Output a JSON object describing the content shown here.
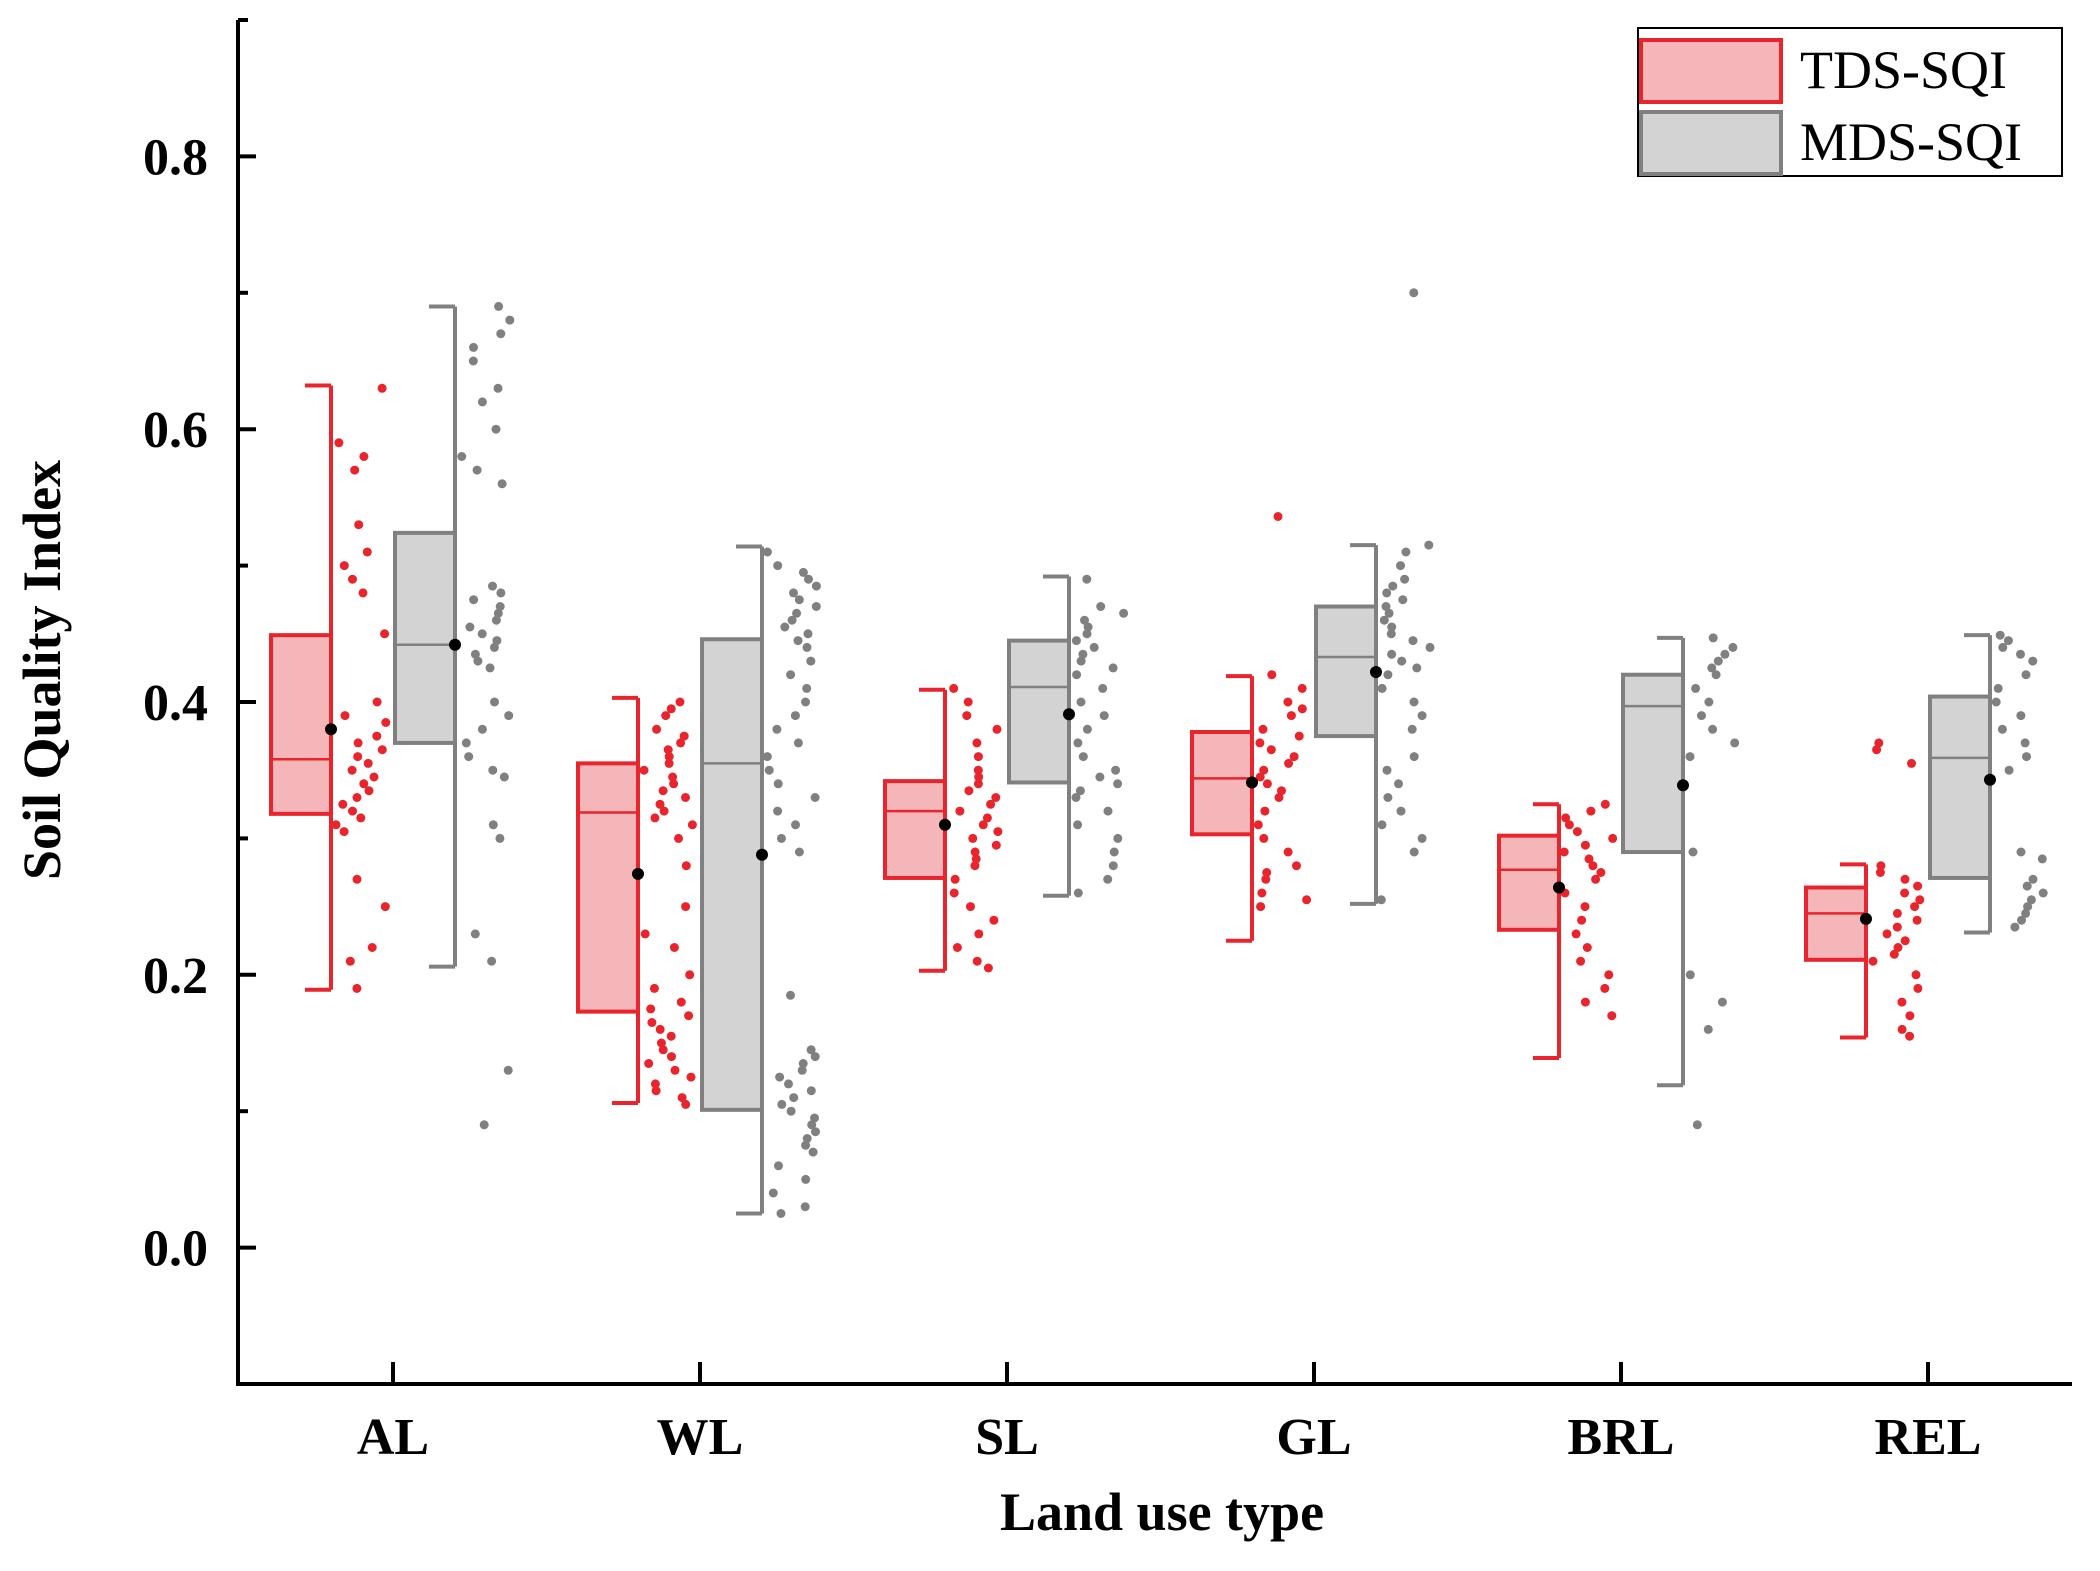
{
  "chart_data": {
    "type": "box",
    "title": "",
    "xlabel": "Land use type",
    "ylabel": "Soil Quality Index",
    "ylim": [
      -0.1,
      0.9
    ],
    "yticks": [
      "0.0",
      "0.2",
      "0.4",
      "0.6",
      "0.8"
    ],
    "categories": [
      "AL",
      "WL",
      "SL",
      "GL",
      "BRL",
      "REL"
    ],
    "legend": {
      "position": "top-right",
      "entries": [
        "TDS-SQI",
        "MDS-SQI"
      ]
    },
    "series": [
      {
        "name": "TDS-SQI",
        "color": "#e8242c",
        "fill": "#f4b6b9",
        "boxes": [
          {
            "q1": 0.318,
            "median": 0.358,
            "q3": 0.449,
            "whisker_low": 0.189,
            "whisker_high": 0.632,
            "mean": 0.38,
            "points": [
              0.63,
              0.59,
              0.58,
              0.57,
              0.53,
              0.51,
              0.5,
              0.49,
              0.48,
              0.45,
              0.4,
              0.39,
              0.385,
              0.375,
              0.37,
              0.365,
              0.36,
              0.355,
              0.35,
              0.345,
              0.34,
              0.335,
              0.33,
              0.325,
              0.32,
              0.315,
              0.31,
              0.305,
              0.27,
              0.25,
              0.22,
              0.21,
              0.19
            ]
          },
          {
            "q1": 0.173,
            "median": 0.319,
            "q3": 0.355,
            "whisker_low": 0.106,
            "whisker_high": 0.403,
            "mean": 0.274,
            "points": [
              0.4,
              0.395,
              0.39,
              0.38,
              0.375,
              0.37,
              0.365,
              0.36,
              0.355,
              0.35,
              0.345,
              0.34,
              0.335,
              0.33,
              0.325,
              0.32,
              0.315,
              0.31,
              0.3,
              0.28,
              0.25,
              0.23,
              0.22,
              0.2,
              0.19,
              0.18,
              0.175,
              0.17,
              0.165,
              0.16,
              0.155,
              0.15,
              0.145,
              0.14,
              0.135,
              0.13,
              0.125,
              0.12,
              0.115,
              0.11,
              0.105
            ]
          },
          {
            "q1": 0.271,
            "median": 0.32,
            "q3": 0.342,
            "whisker_low": 0.203,
            "whisker_high": 0.409,
            "mean": 0.31,
            "points": [
              0.41,
              0.4,
              0.39,
              0.38,
              0.37,
              0.36,
              0.35,
              0.345,
              0.34,
              0.335,
              0.33,
              0.325,
              0.32,
              0.315,
              0.31,
              0.305,
              0.3,
              0.295,
              0.29,
              0.285,
              0.28,
              0.27,
              0.26,
              0.25,
              0.24,
              0.23,
              0.22,
              0.21,
              0.205
            ]
          },
          {
            "q1": 0.303,
            "median": 0.344,
            "q3": 0.378,
            "whisker_low": 0.225,
            "whisker_high": 0.419,
            "mean": 0.341,
            "points": [
              0.536,
              0.42,
              0.41,
              0.4,
              0.395,
              0.39,
              0.38,
              0.375,
              0.37,
              0.365,
              0.36,
              0.355,
              0.35,
              0.345,
              0.34,
              0.335,
              0.33,
              0.32,
              0.31,
              0.3,
              0.29,
              0.28,
              0.275,
              0.27,
              0.26,
              0.255,
              0.25
            ]
          },
          {
            "q1": 0.233,
            "median": 0.277,
            "q3": 0.302,
            "whisker_low": 0.139,
            "whisker_high": 0.325,
            "mean": 0.264,
            "points": [
              0.325,
              0.32,
              0.315,
              0.31,
              0.305,
              0.3,
              0.295,
              0.29,
              0.285,
              0.28,
              0.275,
              0.27,
              0.26,
              0.25,
              0.24,
              0.23,
              0.22,
              0.21,
              0.2,
              0.19,
              0.18,
              0.17
            ]
          },
          {
            "q1": 0.211,
            "median": 0.245,
            "q3": 0.264,
            "whisker_low": 0.154,
            "whisker_high": 0.281,
            "mean": 0.241,
            "points": [
              0.37,
              0.365,
              0.355,
              0.28,
              0.275,
              0.27,
              0.265,
              0.26,
              0.255,
              0.25,
              0.245,
              0.24,
              0.235,
              0.23,
              0.225,
              0.22,
              0.215,
              0.21,
              0.2,
              0.19,
              0.18,
              0.17,
              0.16,
              0.155
            ]
          }
        ]
      },
      {
        "name": "MDS-SQI",
        "color": "#808080",
        "fill": "#d3d3d3",
        "boxes": [
          {
            "q1": 0.37,
            "median": 0.442,
            "q3": 0.524,
            "whisker_low": 0.206,
            "whisker_high": 0.69,
            "mean": 0.442,
            "points": [
              0.69,
              0.68,
              0.67,
              0.66,
              0.65,
              0.63,
              0.62,
              0.6,
              0.58,
              0.57,
              0.56,
              0.485,
              0.48,
              0.475,
              0.47,
              0.465,
              0.46,
              0.455,
              0.45,
              0.445,
              0.44,
              0.435,
              0.43,
              0.425,
              0.4,
              0.39,
              0.38,
              0.37,
              0.36,
              0.35,
              0.345,
              0.31,
              0.3,
              0.23,
              0.21,
              0.13,
              0.09
            ]
          },
          {
            "q1": 0.101,
            "median": 0.355,
            "q3": 0.446,
            "whisker_low": 0.025,
            "whisker_high": 0.514,
            "mean": 0.288,
            "points": [
              0.51,
              0.5,
              0.495,
              0.49,
              0.485,
              0.48,
              0.475,
              0.47,
              0.465,
              0.46,
              0.455,
              0.45,
              0.445,
              0.44,
              0.43,
              0.42,
              0.41,
              0.4,
              0.39,
              0.38,
              0.37,
              0.36,
              0.35,
              0.34,
              0.33,
              0.32,
              0.31,
              0.3,
              0.29,
              0.185,
              0.145,
              0.14,
              0.135,
              0.13,
              0.125,
              0.12,
              0.115,
              0.11,
              0.105,
              0.1,
              0.095,
              0.09,
              0.085,
              0.08,
              0.075,
              0.07,
              0.06,
              0.05,
              0.04,
              0.03,
              0.025
            ]
          },
          {
            "q1": 0.341,
            "median": 0.411,
            "q3": 0.445,
            "whisker_low": 0.258,
            "whisker_high": 0.492,
            "mean": 0.391,
            "points": [
              0.49,
              0.47,
              0.465,
              0.46,
              0.455,
              0.45,
              0.445,
              0.44,
              0.435,
              0.43,
              0.425,
              0.42,
              0.41,
              0.4,
              0.39,
              0.38,
              0.37,
              0.36,
              0.35,
              0.345,
              0.34,
              0.335,
              0.33,
              0.32,
              0.31,
              0.3,
              0.29,
              0.28,
              0.27,
              0.26
            ]
          },
          {
            "q1": 0.375,
            "median": 0.433,
            "q3": 0.47,
            "whisker_low": 0.252,
            "whisker_high": 0.515,
            "mean": 0.422,
            "points": [
              0.7,
              0.515,
              0.51,
              0.5,
              0.49,
              0.485,
              0.48,
              0.475,
              0.47,
              0.465,
              0.46,
              0.455,
              0.45,
              0.445,
              0.44,
              0.435,
              0.43,
              0.425,
              0.42,
              0.41,
              0.4,
              0.39,
              0.38,
              0.36,
              0.35,
              0.34,
              0.33,
              0.32,
              0.31,
              0.3,
              0.29,
              0.255
            ]
          },
          {
            "q1": 0.29,
            "median": 0.397,
            "q3": 0.42,
            "whisker_low": 0.119,
            "whisker_high": 0.447,
            "mean": 0.339,
            "points": [
              0.447,
              0.44,
              0.435,
              0.43,
              0.425,
              0.42,
              0.41,
              0.4,
              0.39,
              0.38,
              0.37,
              0.36,
              0.29,
              0.2,
              0.18,
              0.16,
              0.09
            ]
          },
          {
            "q1": 0.271,
            "median": 0.359,
            "q3": 0.404,
            "whisker_low": 0.231,
            "whisker_high": 0.449,
            "mean": 0.343,
            "points": [
              0.449,
              0.445,
              0.44,
              0.435,
              0.43,
              0.42,
              0.41,
              0.4,
              0.39,
              0.38,
              0.37,
              0.36,
              0.35,
              0.29,
              0.285,
              0.27,
              0.265,
              0.26,
              0.255,
              0.25,
              0.245,
              0.24,
              0.235
            ]
          }
        ]
      }
    ]
  }
}
